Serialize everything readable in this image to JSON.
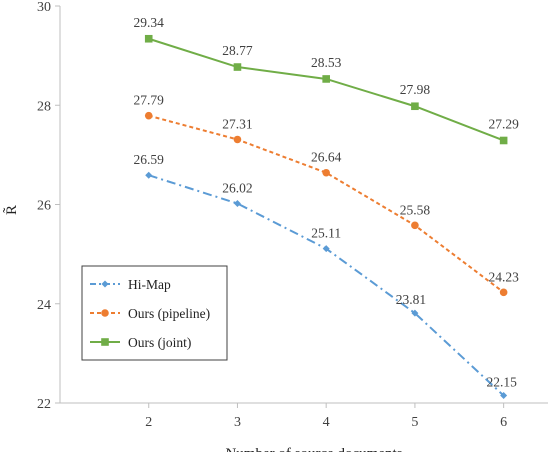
{
  "chart_data": {
    "type": "line",
    "xlabel": "Number of source documents",
    "ylabel": "R̃",
    "x": [
      2,
      3,
      4,
      5,
      6
    ],
    "xlim": [
      1.0,
      6.5
    ],
    "ylim": [
      22,
      30
    ],
    "yticks": [
      22,
      24,
      26,
      28,
      30
    ],
    "grid": false,
    "legend_position": "bottom-left",
    "series": [
      {
        "name": "Hi-Map",
        "values": [
          26.59,
          26.02,
          25.11,
          23.81,
          22.15
        ],
        "color": "#5b9bd5",
        "line_style": "dash-dot",
        "marker": "diamond"
      },
      {
        "name": "Ours (pipeline)",
        "values": [
          27.79,
          27.31,
          26.64,
          25.58,
          24.23
        ],
        "color": "#ed7d31",
        "line_style": "dashed",
        "marker": "circle"
      },
      {
        "name": "Ours (joint)",
        "values": [
          29.34,
          28.77,
          28.53,
          27.98,
          27.29
        ],
        "color": "#70ad47",
        "line_style": "solid",
        "marker": "square"
      }
    ],
    "data_labels": [
      [
        "26.59",
        "26.02",
        "25.11",
        "23.81",
        "22.15"
      ],
      [
        "27.79",
        "27.31",
        "26.64",
        "25.58",
        "24.23"
      ],
      [
        "29.34",
        "28.77",
        "28.53",
        "27.98",
        "27.29"
      ]
    ]
  }
}
